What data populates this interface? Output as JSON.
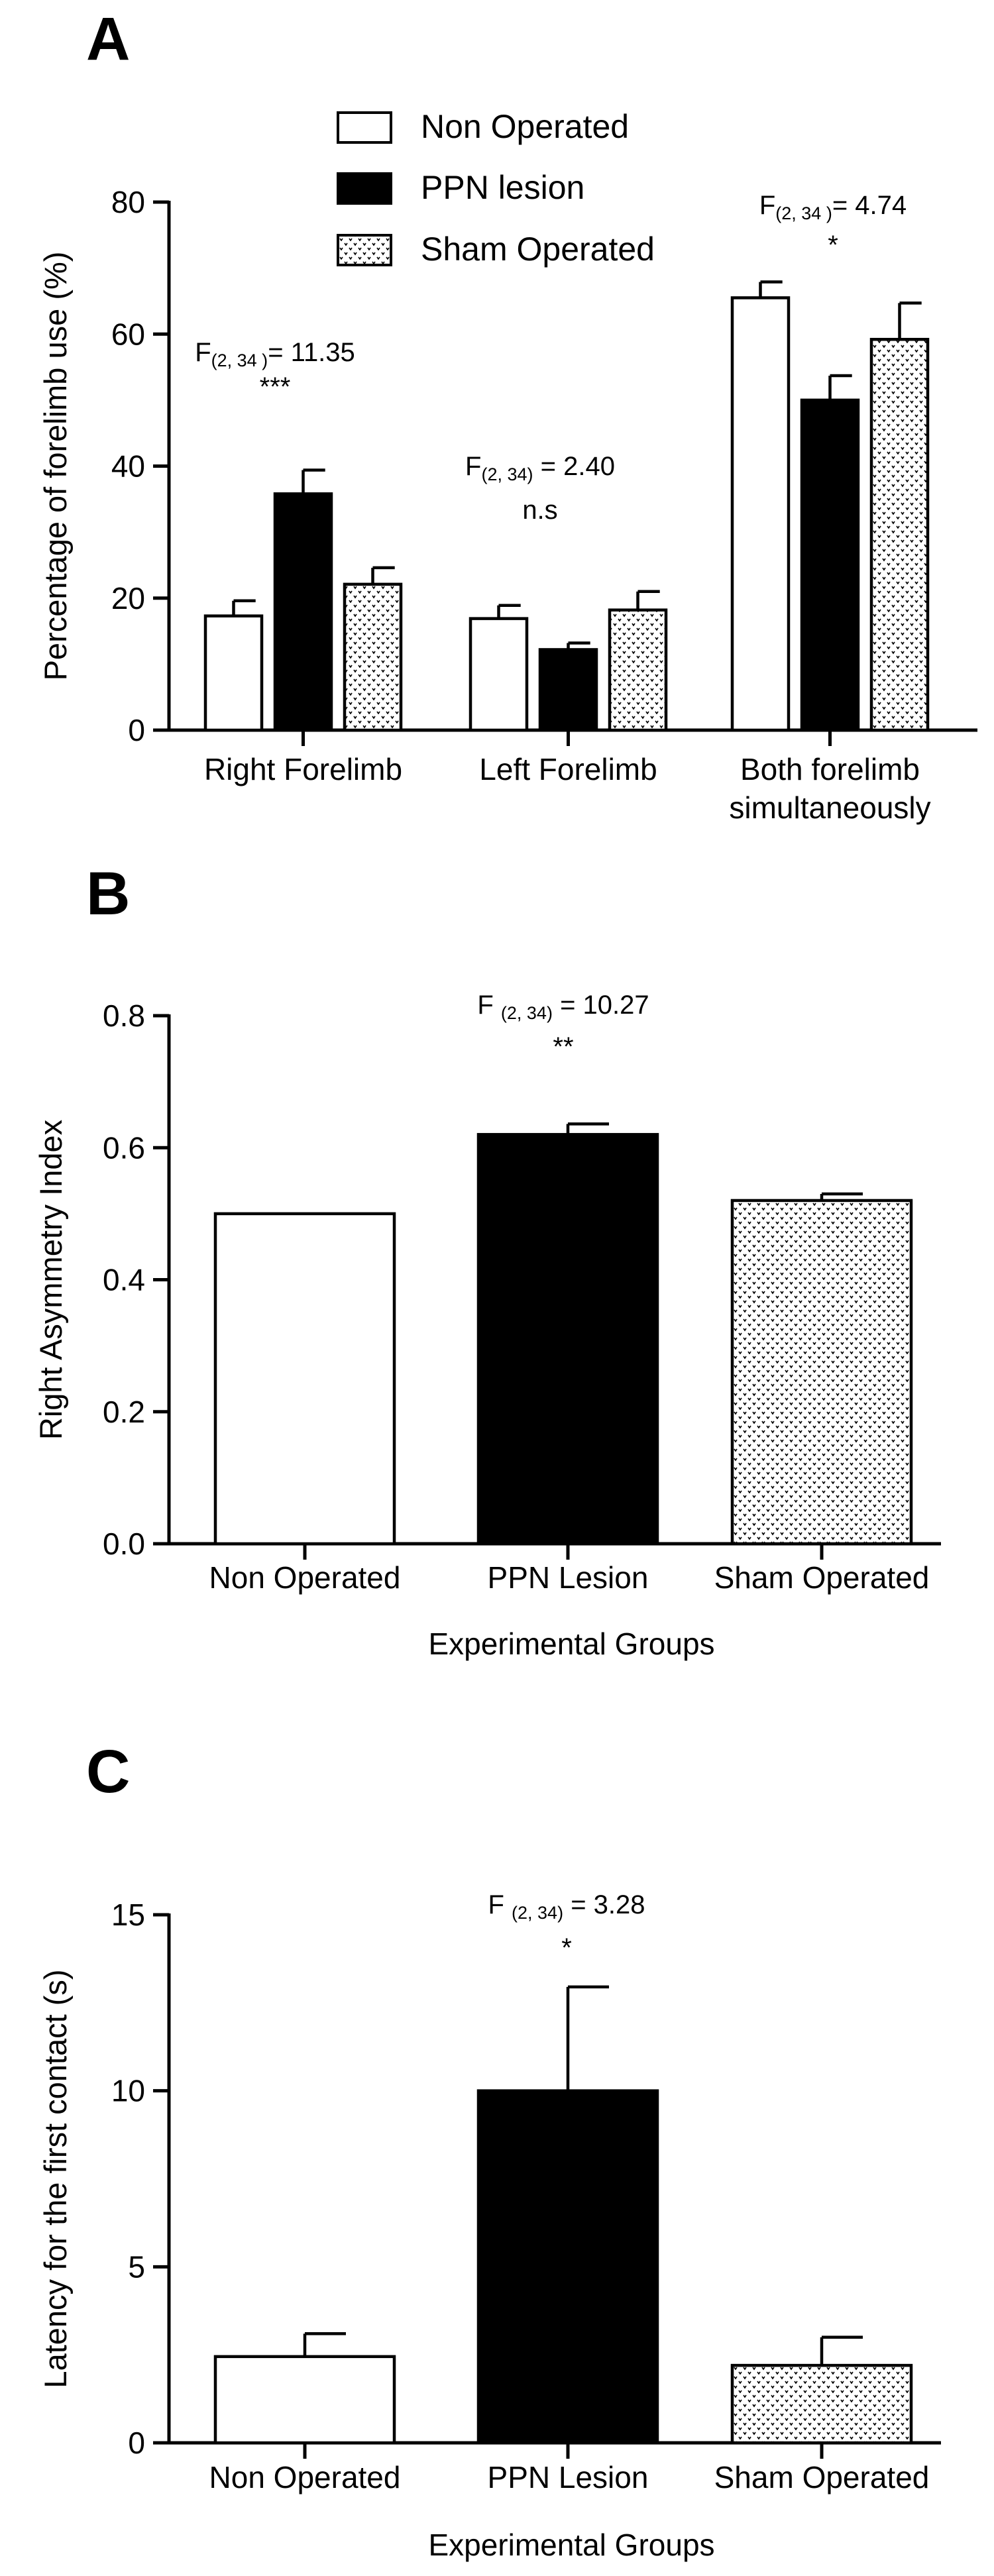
{
  "chart_data": [
    {
      "panel": "A",
      "type": "bar",
      "ylabel": "Percentage of forelimb use (%)",
      "xlabel": "",
      "ylim": [
        0,
        80
      ],
      "yticks": [
        0,
        20,
        40,
        60,
        80
      ],
      "categories": [
        "Right Forelimb",
        "Left Forelimb",
        "Both forelimb simultaneously"
      ],
      "series": [
        {
          "name": "Non Operated",
          "fill": "white",
          "values": [
            17.3,
            16.9,
            65.5
          ],
          "errors": [
            2.3,
            2.0,
            2.4
          ]
        },
        {
          "name": "PPN lesion",
          "fill": "black",
          "values": [
            35.8,
            12.2,
            50.0
          ],
          "errors": [
            3.6,
            1.0,
            3.7
          ]
        },
        {
          "name": "Sham Operated",
          "fill": "dotted",
          "values": [
            22.1,
            18.2,
            59.2
          ],
          "errors": [
            2.5,
            2.8,
            5.5
          ]
        }
      ],
      "annotations": [
        {
          "stat_main": "F",
          "stat_sub": "(2, 34 )",
          "stat_value": "= 11.35",
          "significance": "***"
        },
        {
          "stat_main": "F",
          "stat_sub": "(2, 34)",
          "stat_value": " = 2.40",
          "significance": "n.s"
        },
        {
          "stat_main": "F",
          "stat_sub": "(2, 34 )",
          "stat_value": "= 4.74",
          "significance": "*"
        }
      ],
      "legend_position": "top-left",
      "grid": false
    },
    {
      "panel": "B",
      "type": "bar",
      "ylabel": "Right Asymmetry Index",
      "xlabel": "Experimental Groups",
      "ylim": [
        0,
        0.8
      ],
      "yticks": [
        "0.0",
        "0.2",
        "0.4",
        "0.6",
        "0.8"
      ],
      "categories": [
        "Non Operated",
        "PPN Lesion",
        "Sham Operated"
      ],
      "fills": [
        "white",
        "black",
        "dotted"
      ],
      "values": [
        0.5,
        0.62,
        0.52
      ],
      "errors": [
        0.0,
        0.016,
        0.01
      ],
      "annotations": [
        {
          "stat_main": "F ",
          "stat_sub": "(2, 34)",
          "stat_value": " = 10.27",
          "significance": "**"
        }
      ],
      "grid": false
    },
    {
      "panel": "C",
      "type": "bar",
      "ylabel": "Latency for the first contact (s)",
      "xlabel": "Experimental Groups",
      "ylim": [
        0,
        15
      ],
      "yticks": [
        "0",
        "5",
        "10",
        "15"
      ],
      "categories": [
        "Non Operated",
        "PPN Lesion",
        "Sham Operated"
      ],
      "fills": [
        "white",
        "black",
        "dotted"
      ],
      "values": [
        2.45,
        10.0,
        2.2
      ],
      "errors": [
        0.65,
        2.95,
        0.8
      ],
      "annotations": [
        {
          "stat_main": "F ",
          "stat_sub": "(2, 34)",
          "stat_value": " = 3.28",
          "significance": "*"
        }
      ],
      "grid": false
    }
  ]
}
